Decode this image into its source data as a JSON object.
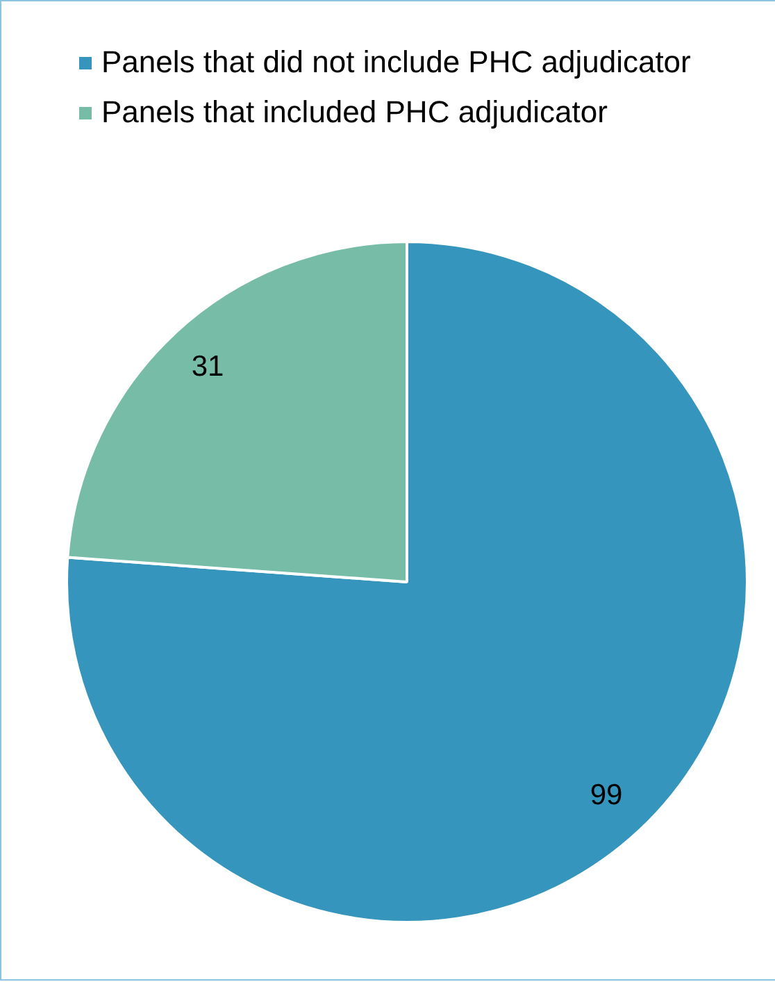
{
  "chart_data": {
    "type": "pie",
    "categories": [
      "Panels that did not include PHC adjudicator",
      "Panels that included PHC adjudicator"
    ],
    "values": [
      99,
      31
    ],
    "colors": [
      "#3595bc",
      "#76bca6"
    ],
    "legend": "top",
    "data_labels": true
  }
}
